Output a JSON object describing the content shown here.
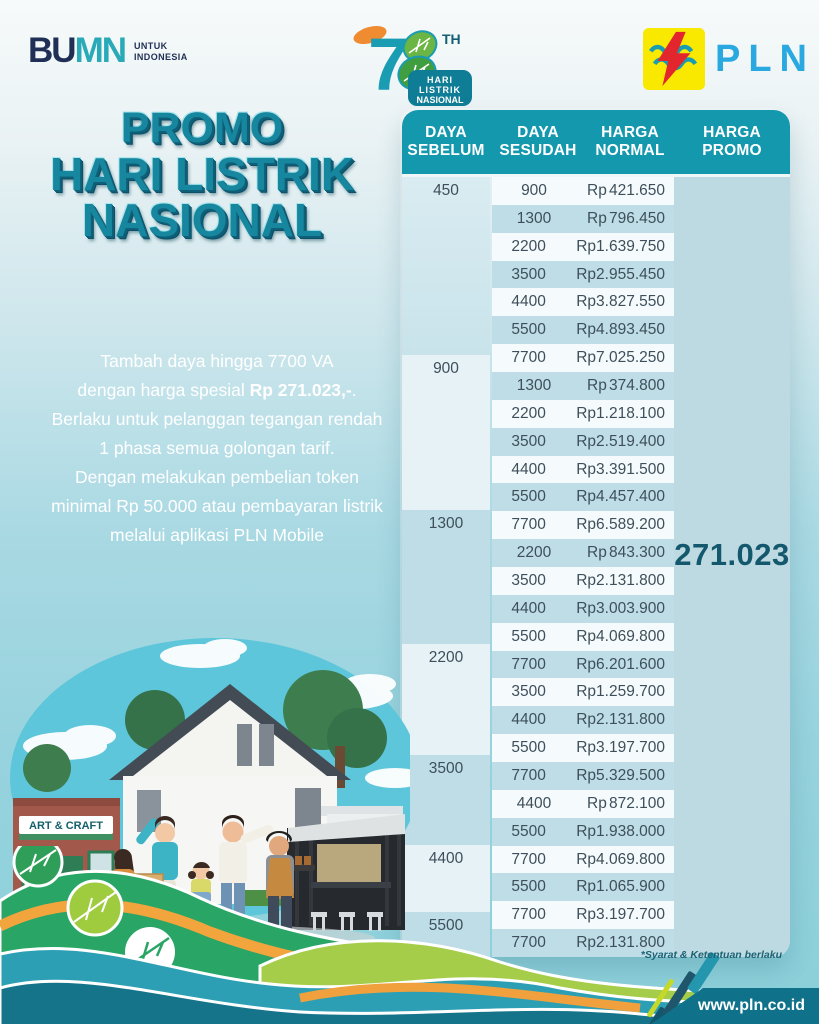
{
  "header": {
    "bumn": {
      "wordmark_left": "BU",
      "wordmark_right": "MN",
      "tagline": [
        "UNTUK",
        "INDONESIA"
      ]
    },
    "anniversary": {
      "number": "78",
      "suffix": "TH",
      "badge": [
        "HARI",
        "LISTRIK",
        "NASIONAL"
      ]
    },
    "pln": {
      "name": "PLN"
    }
  },
  "title": {
    "lines": [
      "PROMO",
      "HARI LISTRIK",
      "NASIONAL"
    ]
  },
  "description": {
    "lines": [
      [
        {
          "t": "Tambah daya hingga 7700 VA"
        }
      ],
      [
        {
          "t": "dengan harga spesial "
        },
        {
          "t": "Rp 271.023,-",
          "b": true
        },
        {
          "t": "."
        }
      ],
      [
        {
          "t": "Berlaku untuk pelanggan tegangan rendah"
        }
      ],
      [
        {
          "t": "1 phasa semua golongan tarif."
        }
      ],
      [
        {
          "t": "Dengan melakukan pembelian token"
        }
      ],
      [
        {
          "t": "minimal Rp 50.000 atau pembayaran listrik"
        }
      ],
      [
        {
          "t": "melalui aplikasi PLN Mobile"
        }
      ]
    ]
  },
  "table": {
    "headers": [
      [
        "DAYA",
        "SEBELUM"
      ],
      [
        "DAYA",
        "SESUDAH"
      ],
      [
        "HARGA",
        "NORMAL"
      ],
      [
        "HARGA",
        "PROMO"
      ]
    ],
    "currency_prefix": "Rp",
    "promo_price": "271.023",
    "groups": [
      {
        "before": "450",
        "rows": [
          {
            "after": "900",
            "price": "421.650"
          },
          {
            "after": "1300",
            "price": "796.450"
          },
          {
            "after": "2200",
            "price": "1.639.750"
          },
          {
            "after": "3500",
            "price": "2.955.450"
          },
          {
            "after": "4400",
            "price": "3.827.550"
          },
          {
            "after": "5500",
            "price": "4.893.450"
          },
          {
            "after": "7700",
            "price": "7.025.250"
          }
        ]
      },
      {
        "before": "900",
        "rows": [
          {
            "after": "1300",
            "price": "374.800"
          },
          {
            "after": "2200",
            "price": "1.218.100"
          },
          {
            "after": "3500",
            "price": "2.519.400"
          },
          {
            "after": "4400",
            "price": "3.391.500"
          },
          {
            "after": "5500",
            "price": "4.457.400"
          },
          {
            "after": "7700",
            "price": "6.589.200"
          }
        ]
      },
      {
        "before": "1300",
        "rows": [
          {
            "after": "2200",
            "price": "843.300"
          },
          {
            "after": "3500",
            "price": "2.131.800"
          },
          {
            "after": "4400",
            "price": "3.003.900"
          },
          {
            "after": "5500",
            "price": "4.069.800"
          },
          {
            "after": "7700",
            "price": "6.201.600"
          }
        ]
      },
      {
        "before": "2200",
        "rows": [
          {
            "after": "3500",
            "price": "1.259.700"
          },
          {
            "after": "4400",
            "price": "2.131.800"
          },
          {
            "after": "5500",
            "price": "3.197.700"
          },
          {
            "after": "7700",
            "price": "5.329.500"
          }
        ]
      },
      {
        "before": "3500",
        "rows": [
          {
            "after": "4400",
            "price": "872.100"
          },
          {
            "after": "5500",
            "price": "1.938.000"
          },
          {
            "after": "7700",
            "price": "4.069.800"
          }
        ]
      },
      {
        "before": "4400",
        "rows": [
          {
            "after": "5500",
            "price": "1.065.900"
          },
          {
            "after": "7700",
            "price": "3.197.700"
          }
        ]
      },
      {
        "before": "5500",
        "rows": [
          {
            "after": "7700",
            "price": "2.131.800"
          }
        ]
      }
    ]
  },
  "footnote": "*Syarat & Ketentuan  berlaku",
  "footer": {
    "website": "www.pln.co.id"
  },
  "illustration": {
    "shop_sign": "ART & CRAFT"
  },
  "colors": {
    "table_header_teal": "#1498ae",
    "row_stripe": "#bedde6",
    "row_light": "#f5fbfc",
    "promo_panel": "#bdd9e1",
    "promo_text": "#14586e",
    "title_teal": "#16879f",
    "footer_band": "#0f718a",
    "pln_blue": "#29a9e0",
    "pln_yellow": "#f9e900",
    "pln_red": "#e3262d",
    "bumn_navy": "#1f2f55",
    "bumn_teal": "#2aa9b8",
    "wave_green": "#29a566",
    "wave_lime": "#a6cd49",
    "wave_teal": "#2d9fb4",
    "wave_dark_teal": "#16748a",
    "wave_orange": "#f2a43d"
  }
}
